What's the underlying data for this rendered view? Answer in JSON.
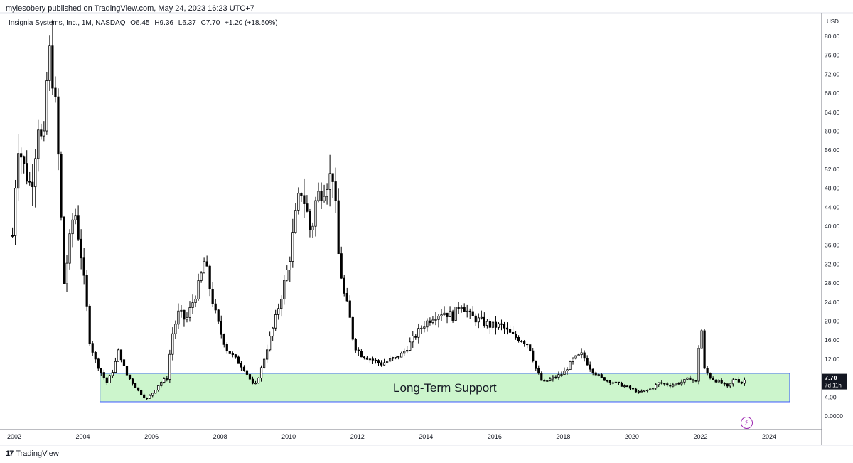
{
  "header": {
    "published": "mylesobery published on TradingView.com, May 24, 2023 16:23 UTC+7"
  },
  "legend": {
    "symbol": "Insignia Systems, Inc., 1M, NASDAQ",
    "open": "O6.45",
    "high": "H9.36",
    "low": "L6.37",
    "close": "C7.70",
    "change": "+1.20 (+18.50%)"
  },
  "price_label": {
    "value": "7.70",
    "countdown": "7d 11h"
  },
  "footer": {
    "logo": "17",
    "brand": "TradingView"
  },
  "colors": {
    "zone_fill": "#ccf5cc",
    "zone_border": "#3d5afe",
    "candle": "#000000",
    "price_tag": "#131722"
  },
  "icons": {
    "replay": "lightning-icon"
  },
  "chart_data": {
    "type": "candlestick",
    "timeframe": "1M",
    "currency": "USD",
    "y_ticks": [
      "80.00",
      "76.00",
      "72.00",
      "68.00",
      "64.00",
      "60.00",
      "56.00",
      "52.00",
      "48.00",
      "44.00",
      "40.00",
      "36.00",
      "32.00",
      "28.00",
      "24.00",
      "20.00",
      "16.00",
      "12.00",
      "8.00",
      "4.00",
      "0.0000"
    ],
    "ylim": [
      0,
      80
    ],
    "x_ticks": [
      "2002",
      "2004",
      "2006",
      "2008",
      "2010",
      "2012",
      "2014",
      "2016",
      "2018",
      "2020",
      "2022",
      "2024"
    ],
    "xlim": [
      2002,
      2024.3
    ],
    "price_path": [
      [
        2001.95,
        38
      ],
      [
        2002.1,
        58
      ],
      [
        2002.3,
        52
      ],
      [
        2002.5,
        48
      ],
      [
        2002.7,
        62
      ],
      [
        2002.85,
        55
      ],
      [
        2003.0,
        78
      ],
      [
        2003.15,
        70
      ],
      [
        2003.25,
        60
      ],
      [
        2003.45,
        28
      ],
      [
        2003.6,
        36
      ],
      [
        2003.75,
        44
      ],
      [
        2003.95,
        34
      ],
      [
        2004.1,
        24
      ],
      [
        2004.2,
        16
      ],
      [
        2004.35,
        12
      ],
      [
        2004.55,
        9
      ],
      [
        2004.7,
        7
      ],
      [
        2004.9,
        10
      ],
      [
        2005.05,
        14
      ],
      [
        2005.25,
        9
      ],
      [
        2005.45,
        7
      ],
      [
        2005.65,
        5
      ],
      [
        2005.85,
        3.5
      ],
      [
        2006.05,
        5
      ],
      [
        2006.25,
        7
      ],
      [
        2006.45,
        8
      ],
      [
        2006.6,
        17
      ],
      [
        2006.8,
        22
      ],
      [
        2007.0,
        20
      ],
      [
        2007.2,
        24
      ],
      [
        2007.4,
        28
      ],
      [
        2007.55,
        33
      ],
      [
        2007.7,
        27
      ],
      [
        2007.85,
        22
      ],
      [
        2008.0,
        18
      ],
      [
        2008.2,
        14
      ],
      [
        2008.45,
        12
      ],
      [
        2008.7,
        10
      ],
      [
        2008.85,
        8
      ],
      [
        2009.0,
        6
      ],
      [
        2009.2,
        10
      ],
      [
        2009.35,
        14
      ],
      [
        2009.6,
        20
      ],
      [
        2009.8,
        26
      ],
      [
        2010.0,
        32
      ],
      [
        2010.2,
        42
      ],
      [
        2010.35,
        48
      ],
      [
        2010.5,
        44
      ],
      [
        2010.65,
        38
      ],
      [
        2010.8,
        46
      ],
      [
        2011.0,
        48
      ],
      [
        2011.15,
        50
      ],
      [
        2011.3,
        51
      ],
      [
        2011.45,
        34
      ],
      [
        2011.6,
        26
      ],
      [
        2011.75,
        22
      ],
      [
        2011.9,
        15
      ],
      [
        2012.1,
        13
      ],
      [
        2012.4,
        12
      ],
      [
        2012.7,
        11
      ],
      [
        2013.0,
        12
      ],
      [
        2013.3,
        13
      ],
      [
        2013.6,
        16
      ],
      [
        2013.9,
        19
      ],
      [
        2014.2,
        21
      ],
      [
        2014.5,
        22
      ],
      [
        2014.8,
        21
      ],
      [
        2015.0,
        24
      ],
      [
        2015.3,
        21
      ],
      [
        2015.6,
        20
      ],
      [
        2015.9,
        19
      ],
      [
        2016.2,
        19
      ],
      [
        2016.5,
        17
      ],
      [
        2016.8,
        16
      ],
      [
        2017.0,
        15
      ],
      [
        2017.2,
        10
      ],
      [
        2017.4,
        7
      ],
      [
        2017.7,
        8
      ],
      [
        2018.0,
        9
      ],
      [
        2018.3,
        12
      ],
      [
        2018.55,
        13
      ],
      [
        2018.8,
        10
      ],
      [
        2019.1,
        8
      ],
      [
        2019.5,
        7
      ],
      [
        2019.9,
        6
      ],
      [
        2020.2,
        5
      ],
      [
        2020.5,
        5.5
      ],
      [
        2020.8,
        7
      ],
      [
        2021.1,
        6.5
      ],
      [
        2021.4,
        7
      ],
      [
        2021.7,
        8
      ],
      [
        2021.9,
        7
      ],
      [
        2022.0,
        22
      ],
      [
        2022.1,
        10
      ],
      [
        2022.3,
        8
      ],
      [
        2022.6,
        7
      ],
      [
        2022.8,
        6
      ],
      [
        2023.0,
        8
      ],
      [
        2023.2,
        7
      ],
      [
        2023.3,
        7.7
      ]
    ],
    "annotations": [
      {
        "label": "Long-Term Support",
        "type": "rectangle",
        "x": [
          2004.5,
          2024.6
        ],
        "y": [
          3.0,
          9.0
        ]
      }
    ]
  }
}
